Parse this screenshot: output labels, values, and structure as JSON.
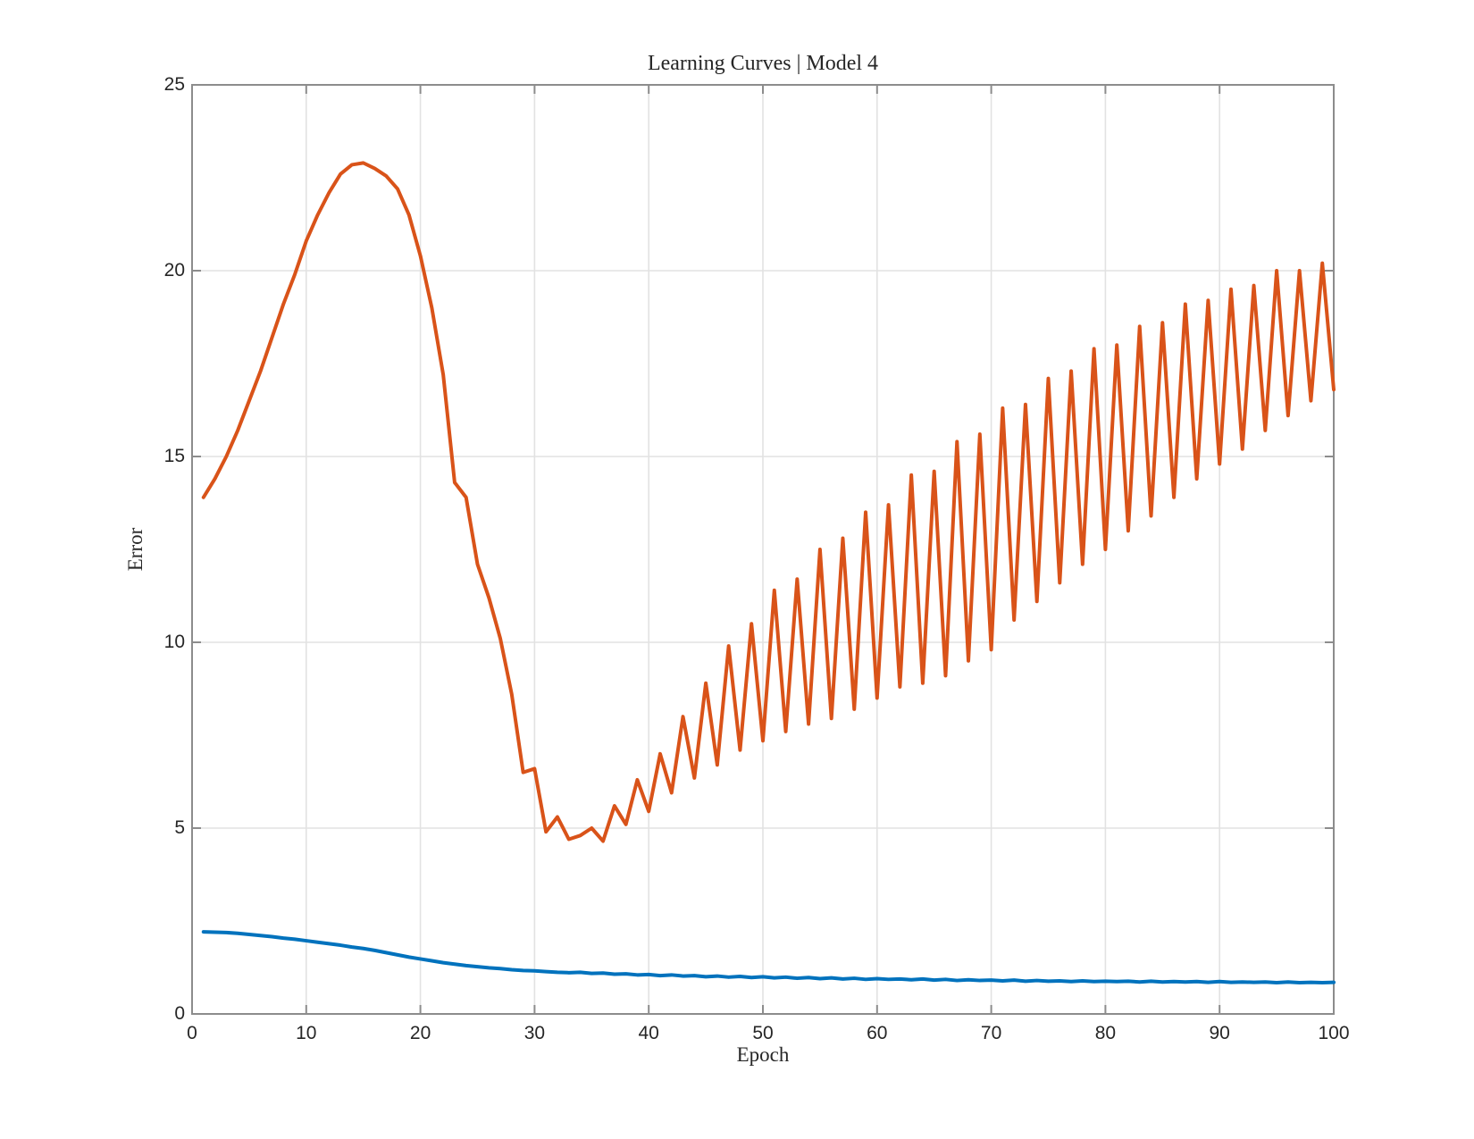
{
  "figure": {
    "background": "#FFFFFF"
  },
  "chart_data": {
    "type": "line",
    "title": "Learning Curves | Model 4",
    "xlabel": "Epoch",
    "ylabel": "Error",
    "xlim": [
      0,
      100
    ],
    "ylim": [
      0,
      25
    ],
    "x_ticks": [
      0,
      10,
      20,
      30,
      40,
      50,
      60,
      70,
      80,
      90,
      100
    ],
    "y_ticks": [
      0,
      5,
      10,
      15,
      20,
      25
    ],
    "grid": true,
    "legend": "none",
    "colors": {
      "grid": "#E2E2E2",
      "axis_box": "#8C8C8C",
      "tick_text": "#262626",
      "blue_series": "#0072BD",
      "orange_series": "#D95319"
    },
    "x": [
      1,
      2,
      3,
      4,
      5,
      6,
      7,
      8,
      9,
      10,
      11,
      12,
      13,
      14,
      15,
      16,
      17,
      18,
      19,
      20,
      21,
      22,
      23,
      24,
      25,
      26,
      27,
      28,
      29,
      30,
      31,
      32,
      33,
      34,
      35,
      36,
      37,
      38,
      39,
      40,
      41,
      42,
      43,
      44,
      45,
      46,
      47,
      48,
      49,
      50,
      51,
      52,
      53,
      54,
      55,
      56,
      57,
      58,
      59,
      60,
      61,
      62,
      63,
      64,
      65,
      66,
      67,
      68,
      69,
      70,
      71,
      72,
      73,
      74,
      75,
      76,
      77,
      78,
      79,
      80,
      81,
      82,
      83,
      84,
      85,
      86,
      87,
      88,
      89,
      90,
      91,
      92,
      93,
      94,
      95,
      96,
      97,
      98,
      99,
      100
    ],
    "series": [
      {
        "name": "blue-series",
        "color": "#0072BD",
        "values": [
          2.21,
          2.2,
          2.19,
          2.17,
          2.14,
          2.11,
          2.08,
          2.04,
          2.01,
          1.97,
          1.93,
          1.89,
          1.85,
          1.8,
          1.76,
          1.71,
          1.65,
          1.59,
          1.53,
          1.48,
          1.43,
          1.38,
          1.34,
          1.3,
          1.27,
          1.24,
          1.22,
          1.19,
          1.17,
          1.16,
          1.14,
          1.12,
          1.11,
          1.12,
          1.09,
          1.1,
          1.07,
          1.08,
          1.05,
          1.06,
          1.03,
          1.05,
          1.02,
          1.03,
          1.0,
          1.02,
          0.99,
          1.01,
          0.98,
          1.0,
          0.97,
          0.99,
          0.96,
          0.98,
          0.95,
          0.97,
          0.94,
          0.96,
          0.93,
          0.95,
          0.93,
          0.94,
          0.92,
          0.94,
          0.91,
          0.93,
          0.9,
          0.92,
          0.9,
          0.91,
          0.89,
          0.91,
          0.88,
          0.9,
          0.88,
          0.89,
          0.87,
          0.89,
          0.87,
          0.88,
          0.87,
          0.88,
          0.86,
          0.88,
          0.86,
          0.87,
          0.86,
          0.87,
          0.85,
          0.87,
          0.85,
          0.86,
          0.85,
          0.86,
          0.84,
          0.86,
          0.84,
          0.85,
          0.84,
          0.85
        ]
      },
      {
        "name": "orange-series",
        "color": "#D95319",
        "values": [
          13.9,
          14.4,
          15.0,
          15.7,
          16.5,
          17.3,
          18.2,
          19.1,
          19.9,
          20.8,
          21.5,
          22.1,
          22.6,
          22.85,
          22.9,
          22.75,
          22.55,
          22.2,
          21.5,
          20.4,
          19.0,
          17.2,
          14.3,
          13.9,
          12.1,
          11.2,
          10.1,
          8.6,
          6.5,
          6.6,
          4.9,
          5.3,
          4.7,
          4.8,
          5.0,
          4.65,
          5.6,
          5.1,
          6.3,
          5.45,
          7.0,
          5.95,
          8.0,
          6.35,
          8.9,
          6.7,
          9.9,
          7.1,
          10.5,
          7.35,
          11.4,
          7.6,
          11.7,
          7.8,
          12.5,
          7.95,
          12.8,
          8.2,
          13.5,
          8.5,
          13.7,
          8.8,
          14.5,
          8.9,
          14.6,
          9.1,
          15.4,
          9.5,
          15.6,
          9.8,
          16.3,
          10.6,
          16.4,
          11.1,
          17.1,
          11.6,
          17.3,
          12.1,
          17.9,
          12.5,
          18.0,
          13.0,
          18.5,
          13.4,
          18.6,
          13.9,
          19.1,
          14.4,
          19.2,
          14.8,
          19.5,
          15.2,
          19.6,
          15.7,
          20.0,
          16.1,
          20.0,
          16.5,
          20.2,
          16.8
        ]
      }
    ]
  }
}
